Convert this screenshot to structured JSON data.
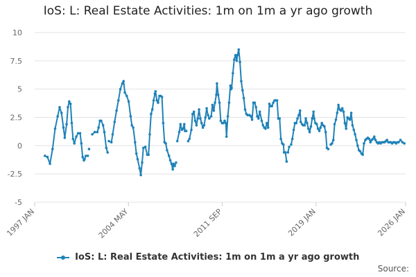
{
  "chart_data": {
    "type": "line",
    "title": "IoS: L: Real Estate Activities: 1m on 1m a yr ago growth",
    "xlabel": "",
    "ylabel": "",
    "x_range": [
      1997.0,
      2026.0
    ],
    "ylim": [
      -5,
      10
    ],
    "y_ticks": [
      10,
      7.5,
      5,
      2.5,
      0,
      -2.5,
      -5
    ],
    "y_tick_labels": [
      "10",
      "7.5",
      "5",
      "2.5",
      "0",
      "-2.5",
      "-5"
    ],
    "x_ticks": [
      1997.0,
      2004.33,
      2011.67,
      2019.0,
      2026.0
    ],
    "x_tick_labels": [
      "1997 JAN",
      "2004 MAY",
      "2011 SEP",
      "2019 JAN",
      "2026 JAN"
    ],
    "grid": true,
    "legend_position": "bottom",
    "series": [
      {
        "name": "IoS: L: Real Estate Activities: 1m on 1m a yr ago growth",
        "color": "#1f82b8",
        "segments": [
          [
            [
              1997.8,
              -0.9
            ],
            [
              1998.0,
              -1.0
            ],
            [
              1998.2,
              -1.6
            ],
            [
              1998.4,
              -0.3
            ],
            [
              1998.6,
              1.5
            ],
            [
              1998.8,
              2.6
            ],
            [
              1998.95,
              3.4
            ],
            [
              1999.1,
              2.9
            ],
            [
              1999.25,
              1.6
            ],
            [
              1999.35,
              0.7
            ],
            [
              1999.5,
              1.9
            ],
            [
              1999.6,
              3.4
            ],
            [
              1999.7,
              3.9
            ],
            [
              1999.8,
              3.7
            ],
            [
              1999.9,
              2.0
            ],
            [
              2000.0,
              0.6
            ],
            [
              2000.1,
              0.2
            ],
            [
              2000.25,
              0.8
            ],
            [
              2000.4,
              1.1
            ],
            [
              2000.55,
              1.1
            ],
            [
              2000.65,
              0.2
            ],
            [
              2000.75,
              -1.0
            ],
            [
              2000.85,
              -1.3
            ]
          ],
          [
            [
              2000.9,
              -1.2
            ],
            [
              2001.0,
              -0.9
            ],
            [
              2001.15,
              -0.9
            ]
          ],
          [
            [
              2001.25,
              -0.3
            ]
          ],
          [
            [
              2001.5,
              1.0
            ],
            [
              2001.7,
              1.2
            ],
            [
              2001.9,
              1.2
            ],
            [
              2002.0,
              1.6
            ],
            [
              2002.1,
              2.2
            ],
            [
              2002.2,
              2.2
            ],
            [
              2002.35,
              1.8
            ],
            [
              2002.45,
              1.2
            ],
            [
              2002.6,
              -0.2
            ],
            [
              2002.7,
              -0.6
            ]
          ],
          [
            [
              2002.8,
              0.4
            ],
            [
              2003.0,
              0.3
            ],
            [
              2003.1,
              1.0
            ],
            [
              2003.25,
              2.1
            ],
            [
              2003.4,
              3.1
            ],
            [
              2003.55,
              4.0
            ],
            [
              2003.7,
              5.0
            ],
            [
              2003.85,
              5.5
            ],
            [
              2003.95,
              5.7
            ],
            [
              2004.05,
              4.7
            ],
            [
              2004.2,
              4.4
            ],
            [
              2004.35,
              3.9
            ],
            [
              2004.5,
              2.6
            ],
            [
              2004.6,
              1.8
            ],
            [
              2004.7,
              1.6
            ],
            [
              2004.85,
              0.3
            ],
            [
              2004.95,
              -0.7
            ],
            [
              2005.05,
              -1.2
            ],
            [
              2005.2,
              -2.0
            ],
            [
              2005.3,
              -2.6
            ],
            [
              2005.4,
              -1.5
            ],
            [
              2005.5,
              -0.2
            ],
            [
              2005.65,
              -0.1
            ],
            [
              2005.8,
              -0.8
            ],
            [
              2005.9,
              -0.8
            ],
            [
              2006.0,
              1.0
            ],
            [
              2006.1,
              2.8
            ],
            [
              2006.2,
              3.2
            ],
            [
              2006.3,
              4.0
            ],
            [
              2006.4,
              4.6
            ],
            [
              2006.45,
              4.8
            ],
            [
              2006.55,
              4.0
            ],
            [
              2006.65,
              3.8
            ],
            [
              2006.75,
              4.4
            ],
            [
              2006.85,
              4.4
            ],
            [
              2006.95,
              4.3
            ],
            [
              2007.05,
              2.0
            ],
            [
              2007.15,
              0.3
            ],
            [
              2007.25,
              0.2
            ],
            [
              2007.35,
              -0.4
            ],
            [
              2007.5,
              -0.9
            ],
            [
              2007.6,
              -1.3
            ],
            [
              2007.7,
              -1.6
            ],
            [
              2007.8,
              -2.1
            ],
            [
              2007.85,
              -1.6
            ],
            [
              2007.95,
              -1.8
            ],
            [
              2008.05,
              -1.5
            ]
          ],
          [
            [
              2008.15,
              0.4
            ],
            [
              2008.3,
              1.2
            ],
            [
              2008.4,
              1.9
            ],
            [
              2008.5,
              1.4
            ],
            [
              2008.6,
              1.5
            ],
            [
              2008.7,
              1.9
            ],
            [
              2008.75,
              1.3
            ],
            [
              2008.85,
              1.3
            ]
          ],
          [
            [
              2009.0,
              0.4
            ],
            [
              2009.1,
              0.6
            ],
            [
              2009.25,
              1.4
            ],
            [
              2009.35,
              2.8
            ],
            [
              2009.45,
              3.0
            ],
            [
              2009.55,
              2.2
            ],
            [
              2009.65,
              1.8
            ],
            [
              2009.75,
              2.4
            ],
            [
              2009.85,
              3.2
            ],
            [
              2009.95,
              2.4
            ],
            [
              2010.05,
              2.0
            ],
            [
              2010.15,
              1.6
            ],
            [
              2010.25,
              1.8
            ],
            [
              2010.35,
              2.5
            ],
            [
              2010.45,
              3.3
            ],
            [
              2010.55,
              2.7
            ],
            [
              2010.65,
              2.4
            ],
            [
              2010.8,
              2.6
            ],
            [
              2010.9,
              3.6
            ],
            [
              2011.0,
              3.1
            ],
            [
              2011.1,
              3.8
            ],
            [
              2011.2,
              4.5
            ],
            [
              2011.25,
              5.5
            ],
            [
              2011.35,
              4.5
            ],
            [
              2011.45,
              3.8
            ],
            [
              2011.55,
              2.2
            ],
            [
              2011.65,
              2.0
            ],
            [
              2011.75,
              2.0
            ],
            [
              2011.85,
              2.2
            ],
            [
              2011.95,
              2.0
            ],
            [
              2012.0,
              0.8
            ],
            [
              2012.1,
              2.6
            ],
            [
              2012.2,
              3.8
            ],
            [
              2012.3,
              5.3
            ],
            [
              2012.35,
              5.0
            ],
            [
              2012.4,
              5.1
            ],
            [
              2012.5,
              6.4
            ],
            [
              2012.6,
              7.6
            ],
            [
              2012.7,
              8.0
            ],
            [
              2012.8,
              7.5
            ],
            [
              2012.85,
              8.0
            ],
            [
              2012.95,
              8.5
            ],
            [
              2013.05,
              7.4
            ],
            [
              2013.15,
              5.7
            ],
            [
              2013.25,
              4.9
            ],
            [
              2013.35,
              4.2
            ],
            [
              2013.45,
              3.2
            ],
            [
              2013.55,
              2.8
            ],
            [
              2013.65,
              2.7
            ],
            [
              2013.8,
              2.7
            ],
            [
              2013.9,
              2.6
            ],
            [
              2014.0,
              2.3
            ],
            [
              2014.1,
              3.8
            ],
            [
              2014.2,
              3.8
            ],
            [
              2014.3,
              3.4
            ],
            [
              2014.4,
              2.6
            ],
            [
              2014.5,
              2.4
            ],
            [
              2014.6,
              3.0
            ],
            [
              2014.75,
              2.2
            ],
            [
              2014.85,
              1.8
            ],
            [
              2014.95,
              1.6
            ],
            [
              2015.05,
              1.5
            ],
            [
              2015.15,
              2.0
            ],
            [
              2015.25,
              1.6
            ],
            [
              2015.35,
              3.7
            ],
            [
              2015.45,
              3.5
            ],
            [
              2015.55,
              3.5
            ],
            [
              2015.65,
              3.8
            ],
            [
              2015.75,
              4.0
            ],
            [
              2015.85,
              4.0
            ],
            [
              2015.95,
              4.0
            ],
            [
              2016.05,
              2.4
            ],
            [
              2016.15,
              2.4
            ],
            [
              2016.25,
              0.6
            ],
            [
              2016.35,
              0.2
            ],
            [
              2016.45,
              0.1
            ],
            [
              2016.5,
              -0.6
            ],
            [
              2016.6,
              -0.6
            ],
            [
              2016.7,
              -1.4
            ]
          ],
          [
            [
              2016.8,
              -0.6
            ],
            [
              2016.9,
              -0.1
            ]
          ],
          [
            [
              2017.05,
              0.1
            ],
            [
              2017.15,
              0.6
            ],
            [
              2017.25,
              1.4
            ],
            [
              2017.35,
              2.0
            ],
            [
              2017.45,
              2.0
            ],
            [
              2017.55,
              2.4
            ],
            [
              2017.65,
              2.7
            ],
            [
              2017.75,
              3.1
            ],
            [
              2017.8,
              2.1
            ],
            [
              2017.9,
              1.9
            ],
            [
              2018.0,
              1.8
            ],
            [
              2018.1,
              1.8
            ],
            [
              2018.2,
              2.4
            ],
            [
              2018.3,
              2.0
            ],
            [
              2018.4,
              1.5
            ],
            [
              2018.5,
              1.2
            ],
            [
              2018.6,
              1.7
            ],
            [
              2018.7,
              2.4
            ],
            [
              2018.8,
              3.0
            ],
            [
              2018.85,
              2.4
            ],
            [
              2018.95,
              2.0
            ],
            [
              2019.05,
              1.9
            ],
            [
              2019.15,
              1.5
            ],
            [
              2019.25,
              1.3
            ],
            [
              2019.35,
              1.6
            ],
            [
              2019.45,
              2.0
            ],
            [
              2019.55,
              1.8
            ],
            [
              2019.65,
              1.7
            ],
            [
              2019.75,
              1.2
            ],
            [
              2019.85,
              -0.2
            ],
            [
              2019.95,
              -0.3
            ]
          ],
          [
            [
              2020.15,
              0.1
            ],
            [
              2020.25,
              0.2
            ],
            [
              2020.35,
              0.5
            ],
            [
              2020.45,
              1.9
            ],
            [
              2020.55,
              2.3
            ],
            [
              2020.65,
              2.9
            ],
            [
              2020.75,
              3.6
            ],
            [
              2020.85,
              3.2
            ],
            [
              2020.95,
              3.1
            ],
            [
              2021.05,
              3.3
            ],
            [
              2021.15,
              3.0
            ],
            [
              2021.25,
              2.0
            ],
            [
              2021.35,
              1.5
            ],
            [
              2021.45,
              2.5
            ],
            [
              2021.55,
              2.4
            ],
            [
              2021.65,
              2.3
            ],
            [
              2021.75,
              2.9
            ],
            [
              2021.85,
              1.8
            ],
            [
              2021.95,
              1.4
            ],
            [
              2022.05,
              1.0
            ],
            [
              2022.15,
              0.5
            ],
            [
              2022.25,
              0.0
            ],
            [
              2022.35,
              -0.4
            ],
            [
              2022.45,
              -0.5
            ],
            [
              2022.55,
              -0.7
            ],
            [
              2022.65,
              -0.8
            ],
            [
              2022.75,
              0.2
            ],
            [
              2022.85,
              0.5
            ],
            [
              2022.95,
              0.6
            ],
            [
              2023.05,
              0.7
            ],
            [
              2023.15,
              0.6
            ],
            [
              2023.25,
              0.3
            ],
            [
              2023.35,
              0.5
            ],
            [
              2023.45,
              0.6
            ],
            [
              2023.55,
              0.8
            ],
            [
              2023.65,
              0.5
            ],
            [
              2023.75,
              0.3
            ],
            [
              2023.85,
              0.2
            ],
            [
              2023.95,
              0.3
            ],
            [
              2024.05,
              0.2
            ],
            [
              2024.15,
              0.3
            ],
            [
              2024.25,
              0.3
            ],
            [
              2024.35,
              0.3
            ],
            [
              2024.45,
              0.4
            ],
            [
              2024.55,
              0.5
            ],
            [
              2024.65,
              0.3
            ],
            [
              2024.75,
              0.3
            ],
            [
              2024.85,
              0.3
            ],
            [
              2024.95,
              0.2
            ],
            [
              2025.05,
              0.3
            ],
            [
              2025.15,
              0.3
            ],
            [
              2025.25,
              0.2
            ],
            [
              2025.35,
              0.3
            ],
            [
              2025.45,
              0.3
            ],
            [
              2025.6,
              0.5
            ],
            [
              2025.75,
              0.3
            ],
            [
              2025.9,
              0.2
            ]
          ]
        ]
      }
    ]
  },
  "footer": {
    "source_label": "Source:"
  }
}
